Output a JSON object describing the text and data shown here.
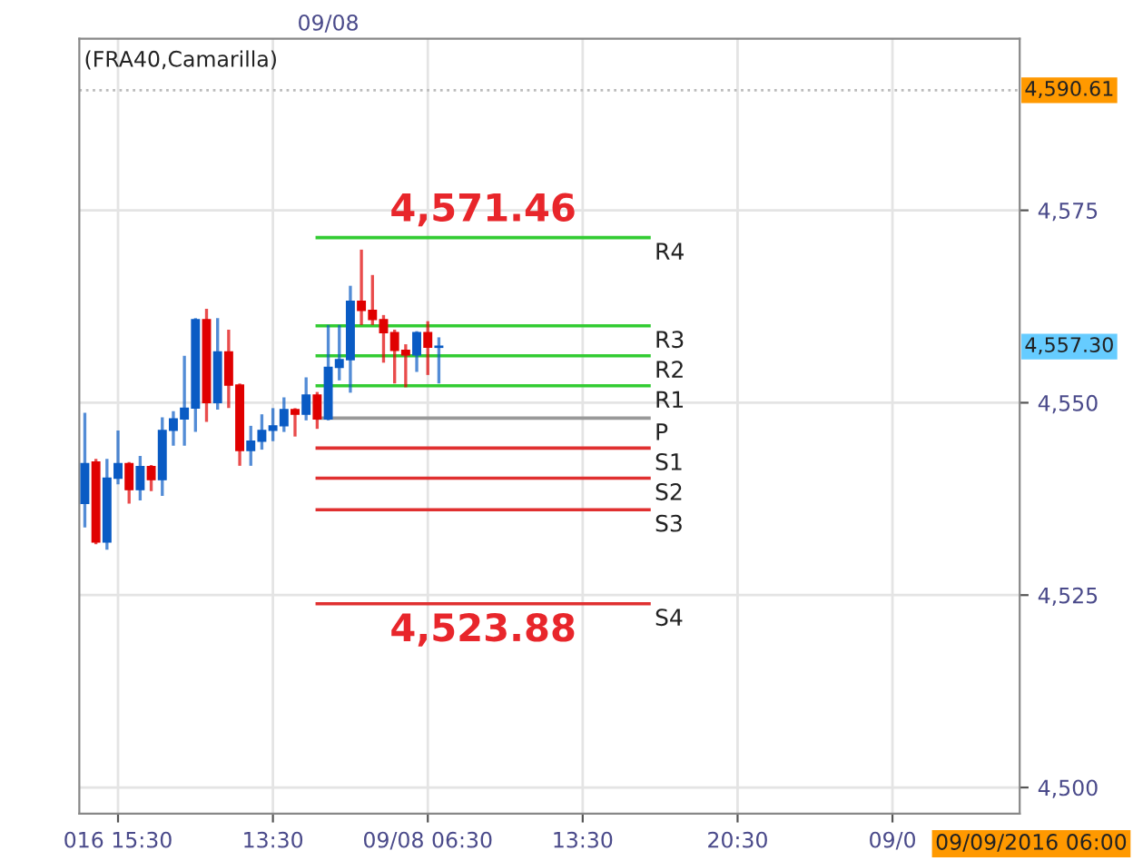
{
  "chart_data": {
    "type": "candlestick",
    "title": "(FRA40,Camarilla)",
    "categories": [
      null,
      null,
      null,
      "016 15:30",
      null,
      null,
      null,
      null,
      null,
      null,
      null,
      null,
      null,
      null,
      null,
      null,
      null,
      "13:30",
      null,
      null,
      null,
      null,
      null,
      null,
      null,
      null,
      null,
      null,
      null,
      null,
      null,
      "09/08 06:30",
      null,
      null,
      null,
      null,
      null,
      null,
      null,
      null,
      null,
      null,
      null,
      null,
      null,
      "13:30",
      null,
      null,
      null,
      null,
      null,
      null,
      null,
      null,
      null,
      null,
      null,
      null,
      null,
      "20:30",
      null,
      null,
      null,
      null,
      null,
      null,
      null,
      null,
      null,
      null,
      null,
      null,
      null,
      "09/0",
      null,
      null,
      null,
      null,
      null,
      null,
      null,
      null,
      null,
      null,
      null
    ],
    "ohlc": [
      [
        4536.9,
        4548.5,
        4534.0,
        4542.1
      ],
      [
        4542.3,
        4542.5,
        4531.8,
        4531.9
      ],
      [
        4531.9,
        4542.5,
        4531.1,
        4540.2
      ],
      [
        4540.2,
        4546.2,
        4539.6,
        4542.1
      ],
      [
        4542.1,
        4542.1,
        4537.1,
        4538.7
      ],
      [
        4538.7,
        4542.9,
        4537.5,
        4541.7
      ],
      [
        4541.7,
        4541.7,
        4538.7,
        4540.0
      ],
      [
        4540.0,
        4547.9,
        4538.1,
        4546.4
      ],
      [
        4546.4,
        4548.7,
        4544.6,
        4547.9
      ],
      [
        4547.9,
        4555.9,
        4544.6,
        4549.3
      ],
      [
        4549.3,
        4560.8,
        4546.4,
        4560.8
      ],
      [
        4560.8,
        4562.0,
        4547.7,
        4550.0
      ],
      [
        4550.0,
        4560.8,
        4549.3,
        4556.6
      ],
      [
        4556.6,
        4559.3,
        4549.5,
        4552.3
      ],
      [
        4552.3,
        4552.3,
        4542.0,
        4543.8
      ],
      [
        4543.8,
        4546.8,
        4542.0,
        4545.0
      ],
      [
        4545.0,
        4548.3,
        4544.1,
        4546.4
      ],
      [
        4546.4,
        4549.1,
        4545.2,
        4547.0
      ],
      [
        4547.0,
        4550.5,
        4546.4,
        4549.1
      ],
      [
        4549.1,
        4549.1,
        4545.8,
        4548.5
      ],
      [
        4548.5,
        4553.1,
        4547.9,
        4551.0
      ],
      [
        4551.0,
        4551.2,
        4546.8,
        4547.9
      ],
      [
        4547.9,
        4559.9,
        4547.9,
        4554.6
      ],
      [
        4554.6,
        4559.9,
        4553.1,
        4555.6
      ],
      [
        4555.6,
        4565.0,
        4551.5,
        4563.2
      ],
      [
        4563.2,
        4569.7,
        4560.3,
        4562.0
      ],
      [
        4562.0,
        4566.4,
        4560.3,
        4560.8
      ],
      [
        4560.8,
        4561.2,
        4555.4,
        4559.1
      ],
      [
        4559.1,
        4559.3,
        4552.7,
        4556.8
      ],
      [
        4556.8,
        4557.4,
        4552.2,
        4556.2
      ],
      [
        4556.2,
        4559.1,
        4554.2,
        4559.1
      ],
      [
        4559.1,
        4560.4,
        4553.8,
        4557.2
      ],
      [
        4557.2,
        4558.3,
        4552.7,
        4557.3
      ],
      null,
      null,
      null,
      null,
      null,
      null,
      null,
      null,
      null,
      null,
      null,
      null,
      null,
      null,
      null,
      null,
      null,
      null,
      null,
      null,
      null,
      null,
      null,
      null,
      null,
      null,
      null,
      null,
      null,
      null,
      null,
      null,
      null,
      null,
      null,
      null,
      null,
      null,
      null,
      null,
      null,
      null,
      null,
      null,
      null,
      null,
      null,
      null,
      null,
      null,
      null,
      null
    ],
    "colors": [
      "#0a5bc4",
      "#e00000",
      "#0a5bc4",
      "#0a5bc4",
      "#e00000",
      "#0a5bc4",
      "#e00000",
      "#0a5bc4",
      "#0a5bc4",
      "#0a5bc4",
      "#0a5bc4",
      "#e00000",
      "#0a5bc4",
      "#e00000",
      "#e00000",
      "#0a5bc4",
      "#0a5bc4",
      "#0a5bc4",
      "#0a5bc4",
      "#e00000",
      "#0a5bc4",
      "#e00000",
      "#0a5bc4",
      "#0a5bc4",
      "#0a5bc4",
      "#e00000",
      "#e00000",
      "#e00000",
      "#e00000",
      "#e00000",
      "#0a5bc4",
      "#e00000",
      "#0a5bc4",
      null,
      null,
      null,
      null,
      null,
      null,
      null,
      null,
      null,
      null,
      null,
      null,
      null,
      null,
      null,
      null,
      null,
      null,
      null,
      null,
      null,
      null,
      null,
      null,
      null,
      null,
      null,
      null,
      null,
      null,
      null,
      null,
      null,
      null,
      null,
      null,
      null,
      null,
      null,
      null,
      null,
      null,
      null,
      null,
      null,
      null,
      null,
      null,
      null,
      null,
      null,
      null
    ],
    "series": [
      {
        "name": "R4",
        "type": "line",
        "color": "#33cc33",
        "values": [
          null,
          null,
          null,
          null,
          null,
          null,
          null,
          null,
          null,
          null,
          null,
          null,
          null,
          null,
          null,
          null,
          null,
          null,
          null,
          null,
          null,
          4571.46,
          4571.46,
          4571.46,
          4571.46,
          4571.46,
          4571.46,
          4571.46,
          4571.46,
          4571.46,
          4571.46,
          4571.46,
          4571.46,
          4571.46,
          4571.46,
          4571.46,
          4571.46,
          4571.46,
          4571.46,
          4571.46,
          4571.46,
          4571.46,
          4571.46,
          4571.46,
          4571.46,
          4571.46,
          4571.46,
          4571.46,
          4571.46,
          4571.46,
          4571.46,
          4571.46,
          null,
          null,
          null,
          null,
          null,
          null,
          null,
          null,
          null,
          null,
          null,
          null,
          null,
          null,
          null,
          null,
          null,
          null,
          null,
          null,
          null,
          null,
          null,
          null,
          null,
          null,
          null,
          null,
          null,
          null,
          null,
          null,
          null
        ]
      },
      {
        "name": "R3",
        "type": "line",
        "color": "#33cc33",
        "values": [
          null,
          null,
          null,
          null,
          null,
          null,
          null,
          null,
          null,
          null,
          null,
          null,
          null,
          null,
          null,
          null,
          null,
          null,
          null,
          null,
          null,
          4560.0,
          4560.0,
          4560.0,
          4560.0,
          4560.0,
          4560.0,
          4560.0,
          4560.0,
          4560.0,
          4560.0,
          4560.0,
          4560.0,
          4560.0,
          4560.0,
          4560.0,
          4560.0,
          4560.0,
          4560.0,
          4560.0,
          4560.0,
          4560.0,
          4560.0,
          4560.0,
          4560.0,
          4560.0,
          4560.0,
          4560.0,
          4560.0,
          4560.0,
          4560.0,
          4560.0,
          null,
          null,
          null,
          null,
          null,
          null,
          null,
          null,
          null,
          null,
          null,
          null,
          null,
          null,
          null,
          null,
          null,
          null,
          null,
          null,
          null,
          null,
          null,
          null,
          null,
          null,
          null,
          null,
          null,
          null,
          null,
          null,
          null
        ]
      },
      {
        "name": "R2",
        "type": "line",
        "color": "#33cc33",
        "values": [
          null,
          null,
          null,
          null,
          null,
          null,
          null,
          null,
          null,
          null,
          null,
          null,
          null,
          null,
          null,
          null,
          null,
          null,
          null,
          null,
          null,
          4556.1,
          4556.1,
          4556.1,
          4556.1,
          4556.1,
          4556.1,
          4556.1,
          4556.1,
          4556.1,
          4556.1,
          4556.1,
          4556.1,
          4556.1,
          4556.1,
          4556.1,
          4556.1,
          4556.1,
          4556.1,
          4556.1,
          4556.1,
          4556.1,
          4556.1,
          4556.1,
          4556.1,
          4556.1,
          4556.1,
          4556.1,
          4556.1,
          4556.1,
          4556.1,
          4556.1,
          null,
          null,
          null,
          null,
          null,
          null,
          null,
          null,
          null,
          null,
          null,
          null,
          null,
          null,
          null,
          null,
          null,
          null,
          null,
          null,
          null,
          null,
          null,
          null,
          null,
          null,
          null,
          null,
          null,
          null,
          null,
          null,
          null
        ]
      },
      {
        "name": "R1",
        "type": "line",
        "color": "#33cc33",
        "values": [
          null,
          null,
          null,
          null,
          null,
          null,
          null,
          null,
          null,
          null,
          null,
          null,
          null,
          null,
          null,
          null,
          null,
          null,
          null,
          null,
          null,
          4552.2,
          4552.2,
          4552.2,
          4552.2,
          4552.2,
          4552.2,
          4552.2,
          4552.2,
          4552.2,
          4552.2,
          4552.2,
          4552.2,
          4552.2,
          4552.2,
          4552.2,
          4552.2,
          4552.2,
          4552.2,
          4552.2,
          4552.2,
          4552.2,
          4552.2,
          4552.2,
          4552.2,
          4552.2,
          4552.2,
          4552.2,
          4552.2,
          4552.2,
          4552.2,
          4552.2,
          null,
          null,
          null,
          null,
          null,
          null,
          null,
          null,
          null,
          null,
          null,
          null,
          null,
          null,
          null,
          null,
          null,
          null,
          null,
          null,
          null,
          null,
          null,
          null,
          null,
          null,
          null,
          null,
          null,
          null,
          null,
          null,
          null
        ]
      },
      {
        "name": "P",
        "type": "line",
        "color": "#999999",
        "values": [
          null,
          null,
          null,
          null,
          null,
          null,
          null,
          null,
          null,
          null,
          null,
          null,
          null,
          null,
          null,
          null,
          null,
          null,
          null,
          null,
          null,
          4548.0,
          4548.0,
          4548.0,
          4548.0,
          4548.0,
          4548.0,
          4548.0,
          4548.0,
          4548.0,
          4548.0,
          4548.0,
          4548.0,
          4548.0,
          4548.0,
          4548.0,
          4548.0,
          4548.0,
          4548.0,
          4548.0,
          4548.0,
          4548.0,
          4548.0,
          4548.0,
          4548.0,
          4548.0,
          4548.0,
          4548.0,
          4548.0,
          4548.0,
          4548.0,
          4548.0,
          null,
          null,
          null,
          null,
          null,
          null,
          null,
          null,
          null,
          null,
          null,
          null,
          null,
          null,
          null,
          null,
          null,
          null,
          null,
          null,
          null,
          null,
          null,
          null,
          null,
          null,
          null,
          null,
          null,
          null,
          null,
          null,
          null
        ]
      },
      {
        "name": "S1",
        "type": "line",
        "color": "#e03030",
        "values": [
          null,
          null,
          null,
          null,
          null,
          null,
          null,
          null,
          null,
          null,
          null,
          null,
          null,
          null,
          null,
          null,
          null,
          null,
          null,
          null,
          null,
          4544.1,
          4544.1,
          4544.1,
          4544.1,
          4544.1,
          4544.1,
          4544.1,
          4544.1,
          4544.1,
          4544.1,
          4544.1,
          4544.1,
          4544.1,
          4544.1,
          4544.1,
          4544.1,
          4544.1,
          4544.1,
          4544.1,
          4544.1,
          4544.1,
          4544.1,
          4544.1,
          4544.1,
          4544.1,
          4544.1,
          4544.1,
          4544.1,
          4544.1,
          4544.1,
          4544.1,
          null,
          null,
          null,
          null,
          null,
          null,
          null,
          null,
          null,
          null,
          null,
          null,
          null,
          null,
          null,
          null,
          null,
          null,
          null,
          null,
          null,
          null,
          null,
          null,
          null,
          null,
          null,
          null,
          null,
          null,
          null,
          null,
          null
        ]
      },
      {
        "name": "S2",
        "type": "line",
        "color": "#e03030",
        "values": [
          null,
          null,
          null,
          null,
          null,
          null,
          null,
          null,
          null,
          null,
          null,
          null,
          null,
          null,
          null,
          null,
          null,
          null,
          null,
          null,
          null,
          4540.2,
          4540.2,
          4540.2,
          4540.2,
          4540.2,
          4540.2,
          4540.2,
          4540.2,
          4540.2,
          4540.2,
          4540.2,
          4540.2,
          4540.2,
          4540.2,
          4540.2,
          4540.2,
          4540.2,
          4540.2,
          4540.2,
          4540.2,
          4540.2,
          4540.2,
          4540.2,
          4540.2,
          4540.2,
          4540.2,
          4540.2,
          4540.2,
          4540.2,
          4540.2,
          4540.2,
          null,
          null,
          null,
          null,
          null,
          null,
          null,
          null,
          null,
          null,
          null,
          null,
          null,
          null,
          null,
          null,
          null,
          null,
          null,
          null,
          null,
          null,
          null,
          null,
          null,
          null,
          null,
          null,
          null,
          null,
          null,
          null,
          null
        ]
      },
      {
        "name": "S3",
        "type": "line",
        "color": "#e03030",
        "values": [
          null,
          null,
          null,
          null,
          null,
          null,
          null,
          null,
          null,
          null,
          null,
          null,
          null,
          null,
          null,
          null,
          null,
          null,
          null,
          null,
          null,
          4536.1,
          4536.1,
          4536.1,
          4536.1,
          4536.1,
          4536.1,
          4536.1,
          4536.1,
          4536.1,
          4536.1,
          4536.1,
          4536.1,
          4536.1,
          4536.1,
          4536.1,
          4536.1,
          4536.1,
          4536.1,
          4536.1,
          4536.1,
          4536.1,
          4536.1,
          4536.1,
          4536.1,
          4536.1,
          4536.1,
          4536.1,
          4536.1,
          4536.1,
          4536.1,
          4536.1,
          null,
          null,
          null,
          null,
          null,
          null,
          null,
          null,
          null,
          null,
          null,
          null,
          null,
          null,
          null,
          null,
          null,
          null,
          null,
          null,
          null,
          null,
          null,
          null,
          null,
          null,
          null,
          null,
          null,
          null,
          null,
          null,
          null
        ]
      },
      {
        "name": "S4",
        "type": "line",
        "color": "#e03030",
        "values": [
          null,
          null,
          null,
          null,
          null,
          null,
          null,
          null,
          null,
          null,
          null,
          null,
          null,
          null,
          null,
          null,
          null,
          null,
          null,
          null,
          null,
          4523.88,
          4523.88,
          4523.88,
          4523.88,
          4523.88,
          4523.88,
          4523.88,
          4523.88,
          4523.88,
          4523.88,
          4523.88,
          4523.88,
          4523.88,
          4523.88,
          4523.88,
          4523.88,
          4523.88,
          4523.88,
          4523.88,
          4523.88,
          4523.88,
          4523.88,
          4523.88,
          4523.88,
          4523.88,
          4523.88,
          4523.88,
          4523.88,
          4523.88,
          4523.88,
          4523.88,
          null,
          null,
          null,
          null,
          null,
          null,
          null,
          null,
          null,
          null,
          null,
          null,
          null,
          null,
          null,
          null,
          null,
          null,
          null,
          null,
          null,
          null,
          null,
          null,
          null,
          null,
          null,
          null,
          null,
          null,
          null,
          null,
          null
        ]
      }
    ],
    "annotations": [
      "4,571.46",
      "4,523.88",
      "4,557.30",
      "09/08",
      "09/09/2016 06:00"
    ],
    "ref_lines": [
      {
        "axis": "y",
        "value": 4590.61,
        "label": "4,590.61",
        "color": "#bbbbbb",
        "line_style": "dotted"
      }
    ],
    "ylim": [
      4496.6,
      4597.3
    ],
    "yticks": [
      {
        "value": 4500,
        "label": "4,500"
      },
      {
        "value": 4525,
        "label": "4,525"
      },
      {
        "value": 4550,
        "label": "4,550"
      },
      {
        "value": 4575,
        "label": "4,575"
      }
    ],
    "grid": true
  }
}
